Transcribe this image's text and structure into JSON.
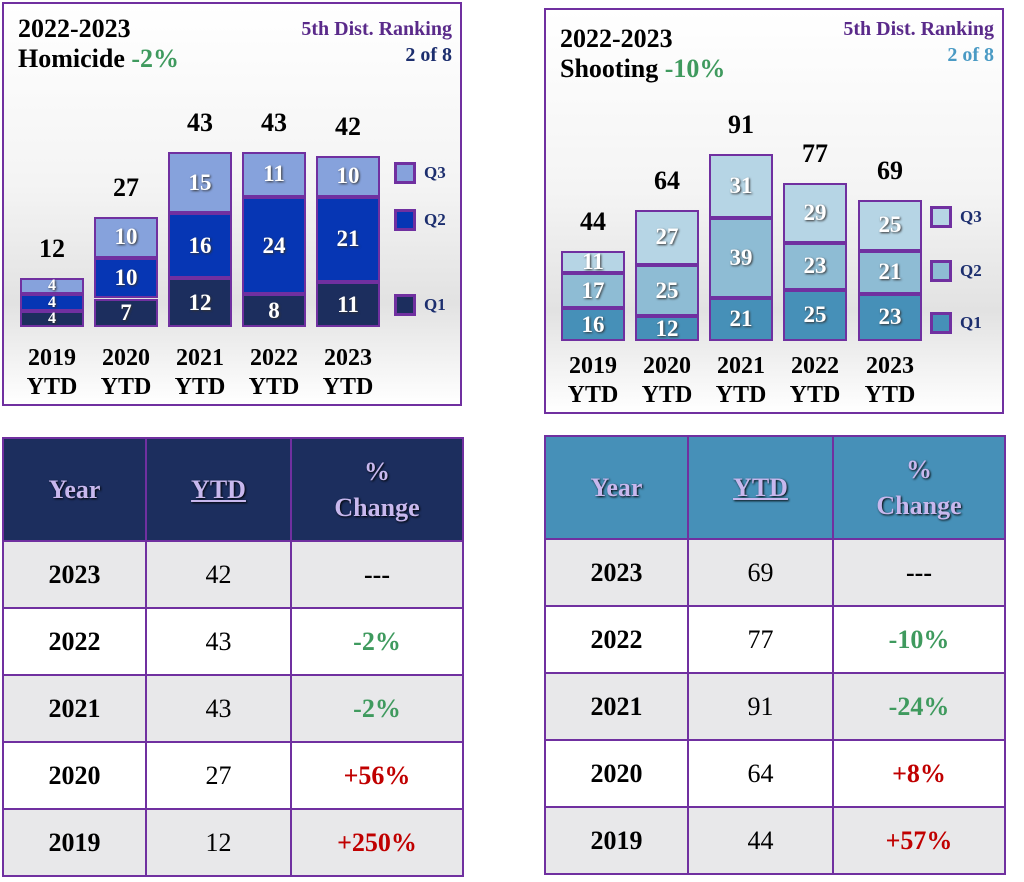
{
  "chart_data": [
    {
      "type": "bar",
      "stacked": true,
      "title_years": "2022-2023",
      "title_crime": "Homicide",
      "title_change": "-2%",
      "ranking_label": "5th Dist. Ranking",
      "ranking_value": "2 of 8",
      "ranking_value_color": "#1c2e6e",
      "categories": [
        [
          "2019",
          "YTD"
        ],
        [
          "2020",
          "YTD"
        ],
        [
          "2021",
          "YTD"
        ],
        [
          "2022",
          "YTD"
        ],
        [
          "2023",
          "YTD"
        ]
      ],
      "totals": [
        12,
        27,
        43,
        43,
        42
      ],
      "series": [
        {
          "name": "Q1",
          "values": [
            4,
            7,
            12,
            8,
            11
          ],
          "color": "#1c2e5e"
        },
        {
          "name": "Q2",
          "values": [
            4,
            10,
            16,
            24,
            21
          ],
          "color": "#0636b4"
        },
        {
          "name": "Q3",
          "values": [
            4,
            10,
            15,
            11,
            10
          ],
          "color": "#86a2dc"
        }
      ],
      "table": {
        "headers": [
          "Year",
          "YTD",
          "%",
          "Change"
        ],
        "rows": [
          [
            "2023",
            "42",
            "---"
          ],
          [
            "2022",
            "43",
            "-2%"
          ],
          [
            "2021",
            "43",
            "-2%"
          ],
          [
            "2020",
            "27",
            "+56%"
          ],
          [
            "2019",
            "12",
            "+250%"
          ]
        ],
        "header_color": "#1c2e5e"
      }
    },
    {
      "type": "bar",
      "stacked": true,
      "title_years": "2022-2023",
      "title_crime": "Shooting",
      "title_change": "-10%",
      "ranking_label": "5th Dist. Ranking",
      "ranking_value": "2 of 8",
      "ranking_value_color": "#4a9ac4",
      "categories": [
        [
          "2019",
          "YTD"
        ],
        [
          "2020",
          "YTD"
        ],
        [
          "2021",
          "YTD"
        ],
        [
          "2022",
          "YTD"
        ],
        [
          "2023",
          "YTD"
        ]
      ],
      "totals": [
        44,
        64,
        91,
        77,
        69
      ],
      "series": [
        {
          "name": "Q1",
          "values": [
            16,
            12,
            21,
            25,
            23
          ],
          "color": "#4690b8"
        },
        {
          "name": "Q2",
          "values": [
            17,
            25,
            39,
            23,
            21
          ],
          "color": "#8ebcd4"
        },
        {
          "name": "Q3",
          "values": [
            11,
            27,
            31,
            29,
            25
          ],
          "color": "#b6d5e5"
        }
      ],
      "table": {
        "headers": [
          "Year",
          "YTD",
          "%",
          "Change"
        ],
        "rows": [
          [
            "2023",
            "69",
            "---"
          ],
          [
            "2022",
            "77",
            "-10%"
          ],
          [
            "2021",
            "91",
            "-24%"
          ],
          [
            "2020",
            "64",
            "+8%"
          ],
          [
            "2019",
            "44",
            "+57%"
          ]
        ],
        "header_color": "#4690b8"
      }
    }
  ],
  "colors": {
    "border": "#7030a0",
    "decrease": "#3f9a5e",
    "increase": "#c00000"
  }
}
